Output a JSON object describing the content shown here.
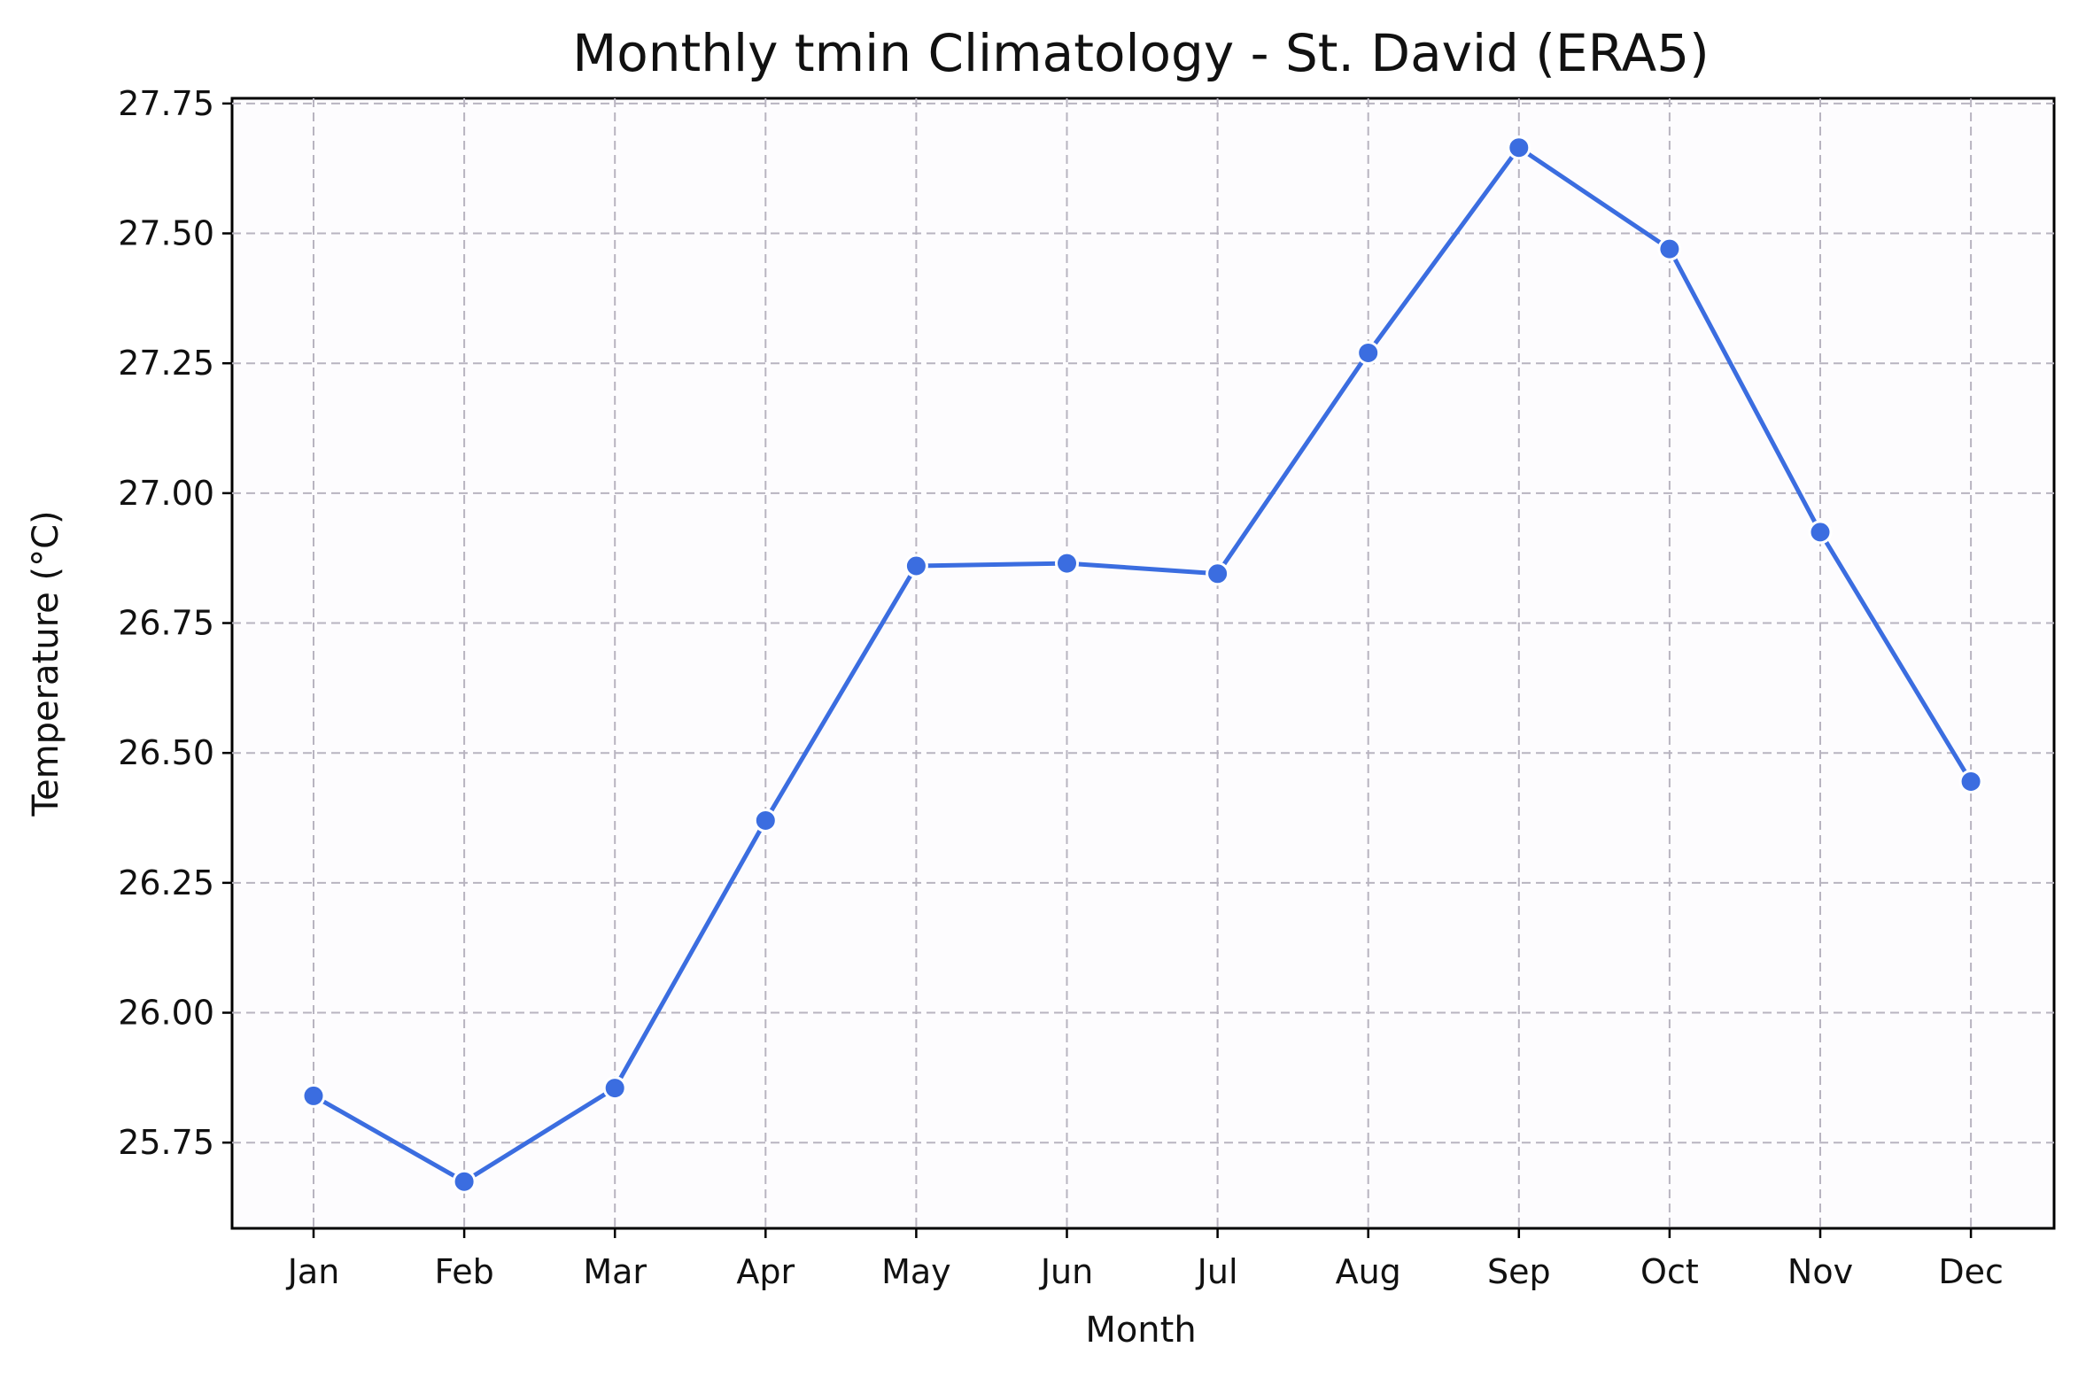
{
  "chart_data": {
    "type": "line",
    "title": "Monthly tmin Climatology - St. David (ERA5)",
    "xlabel": "Month",
    "ylabel": "Temperature (°C)",
    "categories": [
      "Jan",
      "Feb",
      "Mar",
      "Apr",
      "May",
      "Jun",
      "Jul",
      "Aug",
      "Sep",
      "Oct",
      "Nov",
      "Dec"
    ],
    "series": [
      {
        "values": [
          25.84,
          25.675,
          25.855,
          26.37,
          26.86,
          26.865,
          26.845,
          27.27,
          27.665,
          27.47,
          26.925,
          26.445
        ],
        "color": "#3b6de0"
      }
    ],
    "ylim": [
      25.585,
      27.76
    ],
    "yticks": [
      25.75,
      26.0,
      26.25,
      26.5,
      26.75,
      27.0,
      27.25,
      27.5,
      27.75
    ],
    "ytick_labels": [
      "25.75",
      "26.00",
      "26.25",
      "26.50",
      "26.75",
      "27.00",
      "27.25",
      "27.50",
      "27.75"
    ],
    "grid": true,
    "marker": "circle"
  }
}
